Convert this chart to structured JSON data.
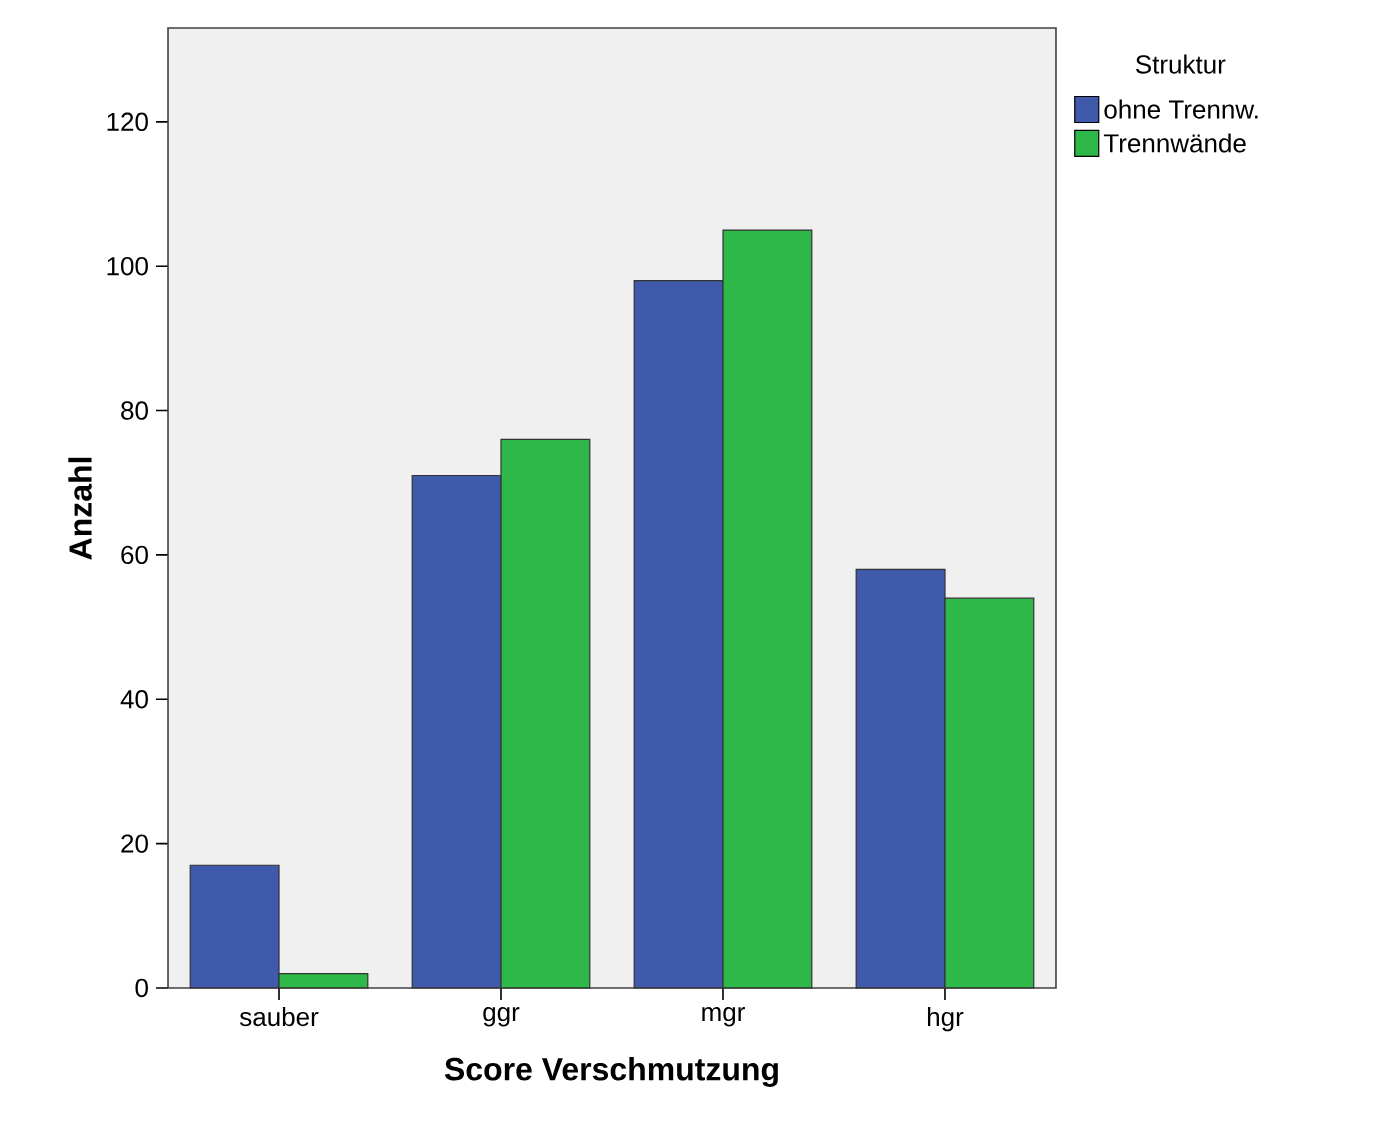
{
  "chart_data": {
    "type": "bar",
    "xlabel": "Score Verschmutzung",
    "ylabel": "Anzahl",
    "legend_title": "Struktur",
    "categories": [
      "sauber",
      "ggr",
      "mgr",
      "hgr"
    ],
    "series": [
      {
        "name": "ohne Trennw.",
        "color": "#3f59ab",
        "values": [
          17,
          71,
          98,
          58
        ]
      },
      {
        "name": "Trennwände",
        "color": "#2fb84a",
        "values": [
          2,
          76,
          105,
          54
        ]
      }
    ],
    "ylim": [
      0,
      133
    ],
    "yticks": [
      0,
      20,
      40,
      60,
      80,
      100,
      120
    ],
    "grid": false,
    "legend": "top right"
  }
}
